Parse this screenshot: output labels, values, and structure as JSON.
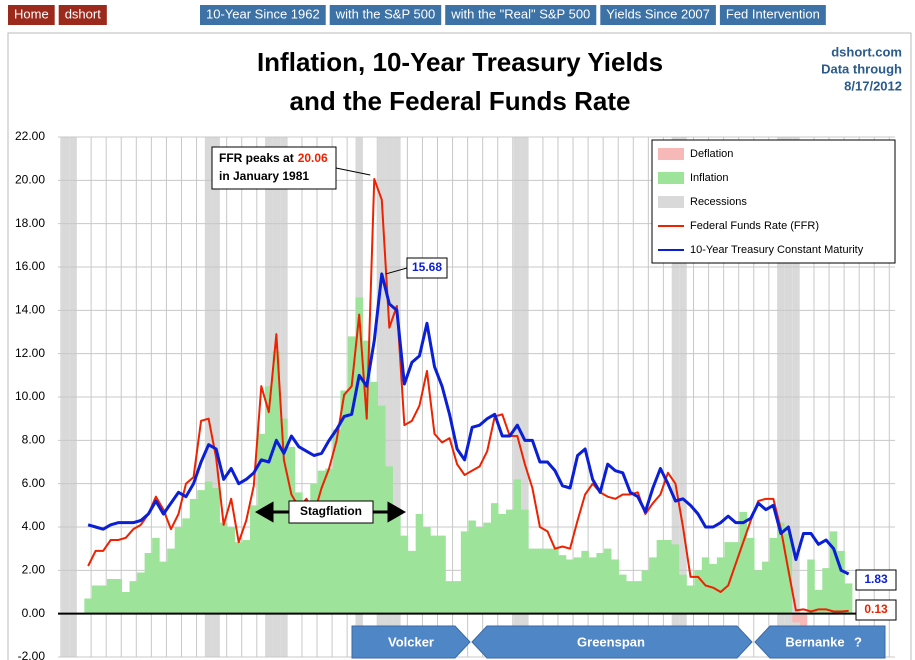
{
  "nav": {
    "left": [
      "Home",
      "dshort"
    ],
    "right": [
      "10-Year Since 1962",
      "with the S&P 500",
      "with the \"Real\" S&P 500",
      "Yields Since 2007",
      "Fed Intervention"
    ]
  },
  "chart_data": {
    "type": "line",
    "title": [
      "Inflation, 10-Year Treasury Yields",
      "and the Federal Funds Rate"
    ],
    "source": [
      "dshort.com",
      "Data through",
      "8/17/2012"
    ],
    "annotations": {
      "peak_before": "FFR peaks at",
      "peak_after": "in January 1981",
      "stagflation": "Stagflation"
    },
    "eras": [
      "Volcker",
      "Greenspan",
      "Bernanke",
      "?"
    ],
    "ylim": [
      -2,
      22
    ],
    "yticks": [
      {
        "value": -2,
        "label": "-2.00"
      },
      {
        "value": 0,
        "label": "0.00"
      },
      {
        "value": 2,
        "label": "2.00"
      },
      {
        "value": 4,
        "label": "4.00"
      },
      {
        "value": 6,
        "label": "6.00"
      },
      {
        "value": 8,
        "label": "8.00"
      },
      {
        "value": 10,
        "label": "10.00"
      },
      {
        "value": 12,
        "label": "12.00"
      },
      {
        "value": 14,
        "label": "14.00"
      },
      {
        "value": 16,
        "label": "16.00"
      },
      {
        "value": 18,
        "label": "18.00"
      },
      {
        "value": 20,
        "label": "20.00"
      },
      {
        "value": 22,
        "label": "22.00"
      }
    ],
    "grid": true,
    "legend": "upper right",
    "categories": [
      null,
      null,
      null,
      null,
      null,
      null,
      null,
      null,
      null,
      null,
      null,
      null,
      null,
      null,
      null,
      null,
      null,
      null,
      null,
      null,
      null,
      null,
      null,
      null,
      null,
      null,
      null,
      null,
      null,
      null,
      null,
      null,
      null,
      null,
      null,
      null,
      null,
      null,
      null,
      null,
      null,
      null,
      null,
      null,
      null,
      null,
      null,
      null,
      null,
      null,
      null,
      null,
      null,
      null,
      null,
      null,
      null,
      null,
      null,
      null,
      null,
      null,
      null,
      null,
      null,
      null,
      null,
      null,
      null,
      null,
      null,
      null,
      null,
      null,
      null,
      null,
      null,
      null,
      null,
      null,
      null,
      null,
      null,
      null,
      null,
      null,
      null,
      null,
      null,
      null,
      null,
      null,
      null,
      null,
      null,
      null,
      null,
      null,
      null,
      null,
      null,
      null,
      null,
      null,
      null,
      null
    ],
    "series": [
      {
        "name": "Deflation",
        "type": "area",
        "color": "#f7b8b8",
        "values": [
          null,
          null,
          null,
          null,
          null,
          null,
          null,
          null,
          null,
          null,
          null,
          null,
          null,
          null,
          null,
          null,
          null,
          null,
          null,
          null,
          null,
          null,
          null,
          null,
          null,
          null,
          null,
          null,
          null,
          null,
          null,
          null,
          null,
          null,
          null,
          null,
          null,
          null,
          null,
          null,
          null,
          null,
          null,
          null,
          null,
          null,
          null,
          null,
          null,
          null,
          null,
          null,
          null,
          null,
          null,
          null,
          null,
          null,
          null,
          null,
          null,
          null,
          null,
          null,
          null,
          null,
          null,
          null,
          null,
          null,
          null,
          null,
          null,
          null,
          null,
          null,
          null,
          null,
          null,
          null,
          null,
          null,
          null,
          null,
          null,
          null,
          null,
          null,
          null,
          null,
          null,
          null,
          null,
          null,
          null,
          null,
          null,
          null,
          -0.4,
          -1.4,
          null,
          null,
          null,
          null,
          null,
          null
        ]
      },
      {
        "name": "Inflation",
        "type": "area",
        "color": "#9ee39a",
        "values": [
          null,
          null,
          null,
          null,
          0.7,
          1.3,
          1.3,
          1.6,
          1.6,
          1.0,
          1.5,
          1.9,
          2.8,
          3.5,
          2.4,
          3.0,
          4.0,
          4.4,
          5.3,
          5.7,
          6.1,
          5.8,
          4.2,
          4.0,
          3.3,
          3.4,
          5.0,
          8.3,
          10.5,
          12.1,
          9.0,
          7.7,
          5.6,
          5.0,
          6.0,
          6.6,
          6.7,
          8.5,
          10.3,
          12.8,
          14.6,
          12.6,
          10.7,
          9.6,
          6.8,
          4.5,
          3.6,
          2.9,
          4.6,
          4.0,
          3.6,
          3.6,
          1.5,
          1.5,
          3.8,
          4.3,
          4.0,
          4.2,
          5.1,
          4.6,
          4.8,
          6.2,
          4.8,
          3.0,
          3.0,
          3.0,
          3.0,
          2.7,
          2.5,
          2.6,
          2.9,
          2.6,
          2.8,
          3.0,
          2.5,
          1.8,
          1.5,
          1.5,
          2.0,
          2.6,
          3.4,
          3.4,
          3.2,
          1.8,
          1.3,
          2.0,
          2.6,
          2.3,
          2.6,
          3.3,
          3.3,
          4.7,
          3.5,
          2.0,
          2.4,
          3.5,
          4.2,
          3.7,
          null,
          null,
          2.5,
          1.1,
          2.1,
          3.8,
          2.9,
          1.4
        ]
      },
      {
        "name": "Recessions",
        "type": "band",
        "color": "#d9d9d9",
        "values": [
          null,
          true,
          true,
          null,
          null,
          null,
          null,
          null,
          null,
          null,
          null,
          null,
          null,
          null,
          null,
          null,
          null,
          null,
          null,
          null,
          true,
          true,
          null,
          null,
          null,
          null,
          null,
          null,
          true,
          true,
          true,
          null,
          null,
          null,
          null,
          null,
          null,
          null,
          null,
          null,
          true,
          null,
          null,
          true,
          true,
          true,
          null,
          null,
          null,
          null,
          null,
          null,
          null,
          null,
          null,
          null,
          null,
          null,
          null,
          null,
          null,
          true,
          true,
          null,
          null,
          null,
          null,
          null,
          null,
          null,
          null,
          null,
          null,
          null,
          null,
          null,
          null,
          null,
          null,
          null,
          null,
          null,
          true,
          true,
          null,
          null,
          null,
          null,
          null,
          null,
          null,
          null,
          null,
          null,
          null,
          null,
          true,
          true,
          true,
          null,
          null,
          null,
          null,
          null,
          null,
          null
        ]
      },
      {
        "name": "Federal Funds Rate (FFR)",
        "type": "line",
        "color": "#ee2200",
        "values": [
          null,
          null,
          null,
          null,
          2.2,
          2.9,
          2.9,
          3.4,
          3.4,
          3.5,
          3.9,
          4.1,
          4.6,
          5.4,
          4.8,
          3.9,
          4.6,
          6.0,
          6.3,
          8.9,
          9.0,
          7.2,
          4.1,
          5.3,
          3.3,
          4.3,
          5.9,
          10.5,
          9.3,
          12.9,
          7.1,
          5.5,
          4.9,
          5.3,
          4.6,
          5.8,
          6.7,
          8.0,
          10.1,
          10.5,
          13.8,
          9.0,
          20.06,
          19.1,
          13.2,
          14.2,
          8.7,
          8.9,
          9.6,
          11.2,
          8.3,
          7.9,
          8.1,
          6.9,
          6.4,
          6.6,
          6.8,
          7.5,
          9.1,
          9.2,
          8.2,
          8.2,
          6.9,
          5.8,
          4.0,
          3.8,
          3.0,
          3.1,
          3.0,
          4.3,
          5.5,
          6.0,
          5.6,
          5.4,
          5.3,
          5.5,
          5.5,
          5.6,
          4.6,
          5.1,
          5.5,
          6.5,
          6.0,
          4.0,
          1.7,
          1.7,
          1.3,
          1.2,
          1.0,
          1.3,
          2.3,
          3.3,
          4.3,
          5.2,
          5.3,
          5.3,
          3.9,
          2.0,
          0.15,
          0.2,
          0.1,
          0.2,
          0.2,
          0.1,
          0.1,
          0.13
        ]
      },
      {
        "name": "10-Year Treasury Constant Maturity",
        "type": "line",
        "color": "#0a1fd6",
        "values": [
          null,
          null,
          null,
          null,
          4.1,
          4.0,
          3.9,
          4.1,
          4.2,
          4.2,
          4.2,
          4.3,
          4.6,
          5.2,
          4.6,
          5.1,
          5.6,
          5.4,
          6.0,
          7.0,
          7.8,
          7.6,
          6.2,
          6.7,
          6.0,
          6.2,
          6.5,
          7.1,
          7.0,
          8.0,
          7.4,
          8.2,
          7.7,
          7.5,
          7.3,
          7.4,
          8.0,
          8.5,
          9.1,
          9.2,
          11.0,
          10.5,
          12.6,
          15.68,
          14.3,
          14.0,
          10.6,
          11.6,
          11.9,
          13.4,
          11.4,
          10.5,
          9.2,
          7.6,
          7.1,
          8.6,
          8.7,
          9.0,
          9.2,
          8.2,
          8.2,
          8.7,
          8.0,
          8.0,
          7.0,
          7.0,
          6.6,
          5.9,
          5.8,
          7.3,
          7.6,
          6.2,
          5.6,
          6.9,
          6.6,
          6.5,
          5.6,
          5.4,
          4.7,
          5.8,
          6.7,
          6.0,
          5.2,
          5.3,
          5.0,
          4.6,
          4.0,
          4.0,
          4.2,
          4.5,
          4.2,
          4.2,
          4.4,
          5.1,
          4.8,
          5.0,
          3.7,
          4.0,
          2.5,
          3.7,
          3.7,
          3.2,
          3.4,
          3.0,
          2.0,
          1.83
        ]
      }
    ]
  }
}
